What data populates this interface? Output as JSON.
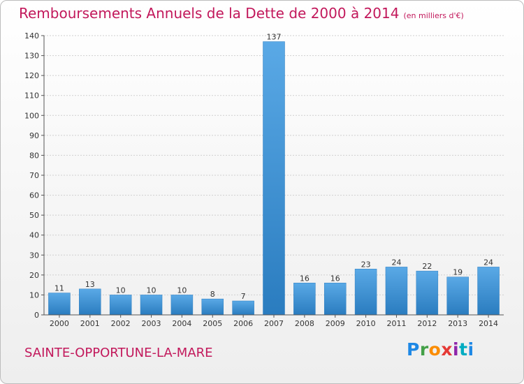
{
  "header": {
    "title": "Remboursements Annuels de la Dette de 2000 à 2014",
    "unit_note": "(en milliers d'€)"
  },
  "footer": {
    "commune": "SAINTE-OPPORTUNE-LA-MARE",
    "logo_letters": [
      "P",
      "r",
      "o",
      "x",
      "i",
      "t",
      "i"
    ]
  },
  "colors": {
    "title": "#c2185b",
    "bar_light": "#5aa9e6",
    "bar_dark": "#2a7cbf",
    "grid": "#cfcfcf"
  },
  "chart_data": {
    "type": "bar",
    "title": "Remboursements Annuels de la Dette de 2000 à 2014",
    "ylabel": "en milliers d'€",
    "xlabel": "",
    "categories": [
      "2000",
      "2001",
      "2002",
      "2003",
      "2004",
      "2005",
      "2006",
      "2007",
      "2008",
      "2009",
      "2010",
      "2011",
      "2012",
      "2013",
      "2014"
    ],
    "values": [
      11,
      13,
      10,
      10,
      10,
      8,
      7,
      137,
      16,
      16,
      23,
      24,
      22,
      19,
      24
    ],
    "ylim": [
      0,
      140
    ],
    "yticks": [
      0,
      10,
      20,
      30,
      40,
      50,
      60,
      70,
      80,
      90,
      100,
      110,
      120,
      130,
      140
    ],
    "grid": true,
    "data_labels": true
  }
}
